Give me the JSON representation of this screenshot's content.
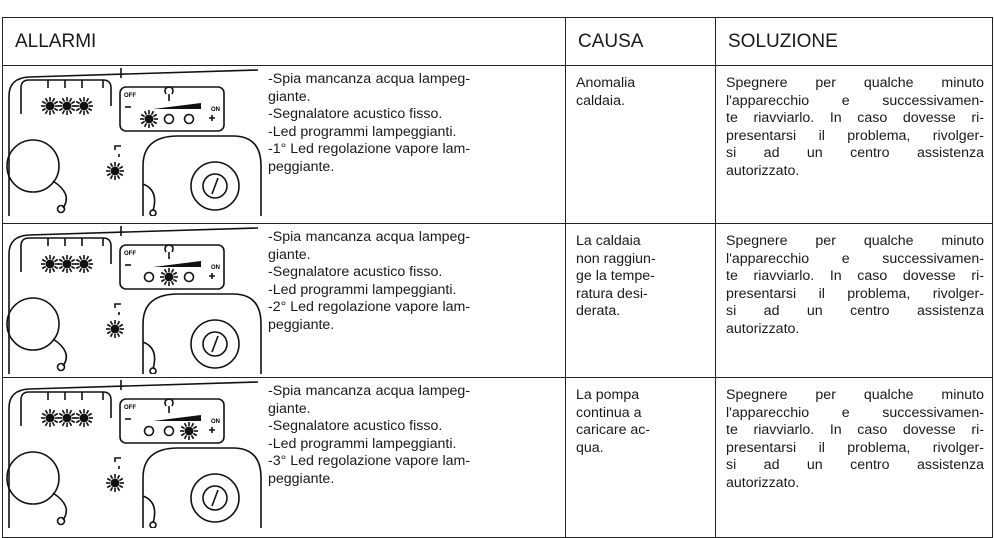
{
  "header": {
    "alarms": "ALLARMI",
    "cause": "CAUSA",
    "solution": "SOLUZIONE"
  },
  "panel": {
    "off": "OFF",
    "on": "ON"
  },
  "rows": [
    {
      "alarm": [
        "-Spia mancanza acqua lampeg-",
        "giante.",
        "-Segnalatore acustico fisso.",
        "-Led programmi lampeggianti.",
        "-1° Led regolazione vapore lam-",
        "peggiante."
      ],
      "cause": [
        "Anomalia",
        "caldaia."
      ],
      "solution": [
        "Spegnere per qualche minuto",
        "l'apparecchio e successivamen-",
        "te riavviarlo. In caso dovesse ri-",
        "presentarsi il problema, rivolger-",
        "si ad un centro assistenza",
        "autorizzato."
      ]
    },
    {
      "alarm": [
        "-Spia mancanza acqua lampeg-",
        "giante.",
        "-Segnalatore acustico fisso.",
        "-Led programmi lampeggianti.",
        "-2° Led regolazione vapore lam-",
        "peggiante."
      ],
      "cause": [
        "La caldaia",
        "non raggiun-",
        "ge la tempe-",
        "ratura desi-",
        "derata."
      ],
      "solution": [
        "Spegnere per qualche minuto",
        "l'apparecchio e successivamen-",
        "te riavviarlo. In caso dovesse ri-",
        "presentarsi il problema, rivolger-",
        "si ad un centro assistenza",
        "autorizzato."
      ]
    },
    {
      "alarm": [
        "-Spia mancanza acqua lampeg-",
        "giante.",
        "-Segnalatore acustico fisso.",
        "-Led programmi lampeggianti.",
        "-3° Led regolazione vapore lam-",
        "peggiante."
      ],
      "cause": [
        "La pompa",
        "continua a",
        "caricare ac-",
        "qua."
      ],
      "solution": [
        "Spegnere per qualche minuto",
        "l'apparecchio e successivamen-",
        "te riavviarlo. In caso dovesse ri-",
        "presentarsi il problema, rivolger-",
        "si ad un centro assistenza",
        "autorizzato."
      ]
    }
  ]
}
